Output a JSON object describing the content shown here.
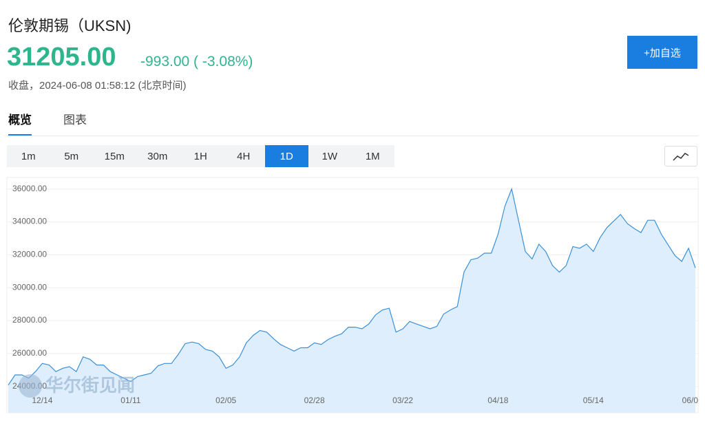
{
  "header": {
    "title": "伦敦期锡（UKSN)",
    "price": "31205.00",
    "change": "-993.00 ( -3.08%)",
    "status": "收盘，2024-06-08 01:58:12 (北京时间)",
    "button": "+加自选"
  },
  "tabs": {
    "items": [
      "概览",
      "图表"
    ],
    "active": 0
  },
  "intervals": {
    "items": [
      "1m",
      "5m",
      "15m",
      "30m",
      "1H",
      "4H",
      "1D",
      "1W",
      "1M"
    ],
    "active": 6
  },
  "watermark": "华尔街见闻",
  "chart_data": {
    "type": "area",
    "color": "#3a8fd8",
    "fill_color": "#deeefc",
    "grid": true,
    "categories": [
      null,
      null,
      null,
      null,
      null,
      "12/14",
      null,
      null,
      null,
      null,
      null,
      null,
      null,
      null,
      null,
      null,
      null,
      null,
      "01/11",
      null,
      null,
      null,
      null,
      null,
      null,
      null,
      null,
      null,
      null,
      null,
      null,
      null,
      "02/05",
      null,
      null,
      null,
      null,
      null,
      null,
      null,
      null,
      null,
      null,
      null,
      null,
      "02/28",
      null,
      null,
      null,
      null,
      null,
      null,
      null,
      null,
      null,
      null,
      null,
      null,
      "03/22",
      null,
      null,
      null,
      null,
      null,
      null,
      null,
      null,
      null,
      null,
      null,
      null,
      null,
      "04/18",
      null,
      null,
      null,
      null,
      null,
      null,
      null,
      null,
      null,
      null,
      null,
      null,
      null,
      "05/14",
      null,
      null,
      null,
      null,
      null,
      null,
      null,
      null,
      null,
      null,
      null,
      null,
      null,
      "06/0",
      null
    ],
    "values": [
      24080,
      24700,
      24700,
      24500,
      24900,
      25400,
      25300,
      24900,
      25100,
      25200,
      24900,
      25800,
      25650,
      25300,
      25300,
      24900,
      24700,
      24500,
      24300,
      24600,
      24700,
      24800,
      25250,
      25400,
      25400,
      25950,
      26600,
      26700,
      26600,
      26250,
      26150,
      25800,
      25100,
      25300,
      25800,
      26650,
      27100,
      27400,
      27300,
      26900,
      26550,
      26350,
      26150,
      26350,
      26350,
      26650,
      26550,
      26850,
      27050,
      27200,
      27600,
      27600,
      27500,
      27800,
      28350,
      28650,
      28750,
      27300,
      27500,
      27950,
      27800,
      27650,
      27500,
      27650,
      28400,
      28650,
      28850,
      30950,
      31700,
      31800,
      32100,
      32100,
      33250,
      34950,
      36000,
      34100,
      32200,
      31750,
      32650,
      32200,
      31350,
      30950,
      31350,
      32500,
      32400,
      32650,
      32200,
      33050,
      33650,
      34050,
      34450,
      33900,
      33600,
      33350,
      34100,
      34100,
      33250,
      32600,
      31950,
      31600,
      32400,
      31205
    ],
    "ylim": [
      22400,
      36700
    ],
    "yticks": [
      {
        "value": 24000,
        "label": "24000.00"
      },
      {
        "value": 26000,
        "label": "26000.00"
      },
      {
        "value": 28000,
        "label": "28000.00"
      },
      {
        "value": 30000,
        "label": "30000.00"
      },
      {
        "value": 32000,
        "label": "32000.00"
      },
      {
        "value": 34000,
        "label": "34000.00"
      },
      {
        "value": 36000,
        "label": "36000.00"
      }
    ]
  }
}
